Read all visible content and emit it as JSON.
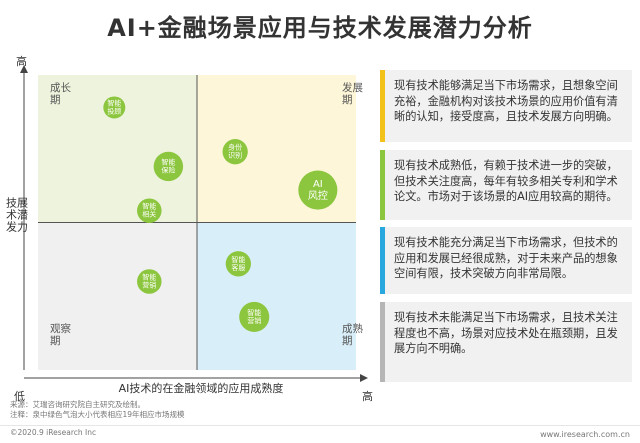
{
  "page": {
    "title": "AI+金融场景应用与技术发展潜力分析"
  },
  "chart_data": {
    "type": "scatter",
    "title": "AI+金融场景应用与技术发展潜力分析",
    "xlabel": "AI技术的在金融领域的应用成熟度",
    "ylabel": "技术发展潜力",
    "x_axis_low": "低",
    "x_axis_high": "高",
    "y_axis_high": "高",
    "quadrants": [
      {
        "name": "成长期",
        "position": "top-left",
        "color": "#edf3dc"
      },
      {
        "name": "发展期",
        "position": "top-right",
        "color": "#fdf6d8"
      },
      {
        "name": "观察期",
        "position": "bottom-left",
        "color": "#f0f0f0"
      },
      {
        "name": "成熟期",
        "position": "bottom-right",
        "color": "#d8eef8"
      }
    ],
    "points": [
      {
        "label": "智能投顾",
        "x": 0.24,
        "y": 0.89,
        "size": 1
      },
      {
        "label": "智能保险",
        "x": 0.41,
        "y": 0.69,
        "size": 2
      },
      {
        "label": "身份识别",
        "x": 0.62,
        "y": 0.74,
        "size": 1.4
      },
      {
        "label": "智能相关",
        "x": 0.35,
        "y": 0.54,
        "size": 1.3
      },
      {
        "label": "AI风控",
        "x": 0.88,
        "y": 0.61,
        "size": 3.8
      },
      {
        "label": "智能客服",
        "x": 0.63,
        "y": 0.36,
        "size": 1.4
      },
      {
        "label": "智能营销",
        "x": 0.35,
        "y": 0.3,
        "size": 1.3
      },
      {
        "label": "智能营销",
        "x": 0.68,
        "y": 0.18,
        "size": 2.1
      }
    ],
    "bubble_color": "#8cc63e"
  },
  "cards": [
    {
      "text": "现有技术能够满足当下市场需求，且想象空间充裕，金融机构对该技术场景的应用价值有清晰的认知，接受度高，且技术发展方向明确。",
      "color": "#f2c21b"
    },
    {
      "text": "现有技术成熟低，有赖于技术进一步的突破，但技术关注度高，每年有较多相关专利和学术论文。市场对于该场景的AI应用较高的期待。",
      "color": "#8cc63e"
    },
    {
      "text": "现有技术能充分满足当下市场需求，但技术的应用和发展已经很成熟，对于未来产品的想象空间有限，技术突破方向非常局限。",
      "color": "#29a8e0"
    },
    {
      "text": "现有技术未能满足当下市场需求，且技术关注程度也不高，场景对应技术处在瓶颈期，且发展方向不明确。",
      "color": "#b5b5b5"
    }
  ],
  "footer": {
    "source": "来源：艾瑞咨询研究院自主研究及绘制。",
    "note": "注释：泉中绿色气泡大小代表相应19年相应市场规模",
    "copyright": "©2020.9 iResearch Inc",
    "website": "www.iresearch.com.cn"
  }
}
